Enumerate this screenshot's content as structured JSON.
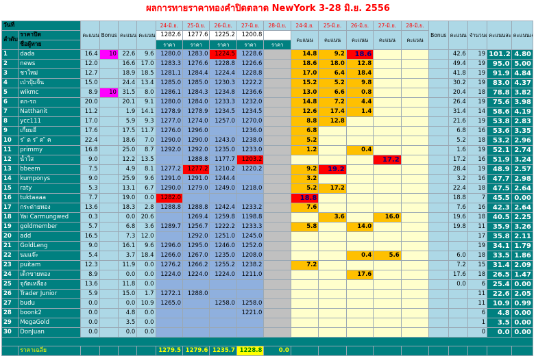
{
  "title": "ผลการทายราคาทองคำปิดตลาด NewYork 3-28 มิ.ย. 2556",
  "header": {
    "row1": [
      "วันที่",
      "คะแนน week1",
      "Bonus week 2",
      "คะแนน week2",
      "คะแนน week3",
      "24-มิ.ย.",
      "25-มิ.ย.",
      "26-มิ.ย.",
      "27-มิ.ย.",
      "28-มิ.ย.",
      "24-มิ.ย.",
      "25-มิ.ย.",
      "26-มิ.ย.",
      "27-มิ.ย.",
      "28-มิ.ย.",
      "Bonus week5",
      "คะแนน week5",
      "จำนวนครั้ง",
      "คะแนนสะสม",
      "คะแนนเฉลี่ย"
    ],
    "close_label": "ราคาปิด",
    "close_prices": [
      "1282.6",
      "1277.6",
      "1225.2",
      "1200.8",
      ""
    ],
    "seq_label": "ลำดับ",
    "player_label": "ชื่อผู้ทาย",
    "price_label": "ราคา",
    "score_label": "คะแนน"
  },
  "rows": [
    {
      "n": "1",
      "name": "dada",
      "w1": "16.4",
      "b2": "10",
      "w2": "22.6",
      "w3": "9.6",
      "p": [
        "1280.0",
        "1283.0",
        "1224.5",
        "1228.6",
        ""
      ],
      "s": [
        "14.8",
        "9.2",
        "18.6",
        "",
        ""
      ],
      "bw5": "",
      "w5": "42.6",
      "cnt": "19",
      "acc": "101.2",
      "avg": "4.80"
    },
    {
      "n": "2",
      "name": "news",
      "w1": "12.0",
      "b2": "",
      "w2": "16.6",
      "w3": "17.0",
      "p": [
        "1283.3",
        "1276.6",
        "1228.8",
        "1226.6",
        ""
      ],
      "s": [
        "18.6",
        "18.0",
        "12.8",
        "",
        ""
      ],
      "bw5": "",
      "w5": "49.4",
      "cnt": "19",
      "acc": "95.0",
      "avg": "5.00"
    },
    {
      "n": "3",
      "name": "ชาใหม่",
      "w1": "12.7",
      "b2": "",
      "w2": "18.9",
      "w3": "18.5",
      "p": [
        "1281.1",
        "1284.4",
        "1224.4",
        "1228.8",
        ""
      ],
      "s": [
        "17.0",
        "6.4",
        "18.4",
        "",
        ""
      ],
      "bw5": "",
      "w5": "41.8",
      "cnt": "19",
      "acc": "91.9",
      "avg": "4.84"
    },
    {
      "n": "4",
      "name": "เป่าปุ้มจิ้น",
      "w1": "15.0",
      "b2": "",
      "w2": "24.4",
      "w3": "13.4",
      "p": [
        "1285.0",
        "1285.0",
        "1230.3",
        "1222.2",
        ""
      ],
      "s": [
        "15.2",
        "5.2",
        "9.8",
        "",
        ""
      ],
      "bw5": "",
      "w5": "30.2",
      "cnt": "19",
      "acc": "83.0",
      "avg": "4.37"
    },
    {
      "n": "5",
      "name": "wikmc",
      "w1": "8.9",
      "b2": "10",
      "w2": "31.5",
      "w3": "8.0",
      "p": [
        "1286.1",
        "1284.3",
        "1234.8",
        "1236.6",
        ""
      ],
      "s": [
        "13.0",
        "6.6",
        "0.8",
        "",
        ""
      ],
      "bw5": "",
      "w5": "20.4",
      "cnt": "18",
      "acc": "78.8",
      "avg": "3.82"
    },
    {
      "n": "6",
      "name": "ตก-รถ",
      "w1": "20.0",
      "b2": "",
      "w2": "20.1",
      "w3": "9.1",
      "p": [
        "1280.0",
        "1284.0",
        "1233.3",
        "1232.0",
        ""
      ],
      "s": [
        "14.8",
        "7.2",
        "4.4",
        "",
        ""
      ],
      "bw5": "",
      "w5": "26.4",
      "cnt": "19",
      "acc": "75.6",
      "avg": "3.98"
    },
    {
      "n": "7",
      "name": "Natthanit",
      "w1": "11.2",
      "b2": "",
      "w2": "1.9",
      "w3": "14.1",
      "p": [
        "1278.9",
        "1278.9",
        "1234.5",
        "1234.5",
        ""
      ],
      "s": [
        "12.6",
        "17.4",
        "1.4",
        "",
        ""
      ],
      "bw5": "",
      "w5": "31.4",
      "cnt": "14",
      "acc": "58.6",
      "avg": "4.19"
    },
    {
      "n": "8",
      "name": "ycc111",
      "w1": "17.0",
      "b2": "",
      "w2": "5.9",
      "w3": "9.3",
      "p": [
        "1277.0",
        "1274.0",
        "1257.0",
        "1270.0",
        ""
      ],
      "s": [
        "8.8",
        "12.8",
        "",
        "",
        ""
      ],
      "bw5": "",
      "w5": "21.6",
      "cnt": "19",
      "acc": "53.8",
      "avg": "2.83"
    },
    {
      "n": "9",
      "name": "เกี้ยมอี๋",
      "w1": "17.6",
      "b2": "",
      "w2": "17.5",
      "w3": "11.7",
      "p": [
        "1276.0",
        "1296.0",
        "",
        "1236.0",
        ""
      ],
      "s": [
        "6.8",
        "",
        "",
        "",
        ""
      ],
      "bw5": "",
      "w5": "6.8",
      "cnt": "16",
      "acc": "53.6",
      "avg": "3.35"
    },
    {
      "n": "10",
      "name": "ร ั ต ร ั ต ั ค",
      "w1": "22.4",
      "b2": "",
      "w2": "18.6",
      "w3": "7.0",
      "p": [
        "1290.0",
        "1290.0",
        "1243.0",
        "1238.0",
        ""
      ],
      "s": [
        "5.2",
        "",
        "",
        "",
        ""
      ],
      "bw5": "",
      "w5": "5.2",
      "cnt": "18",
      "acc": "53.2",
      "avg": "2.96"
    },
    {
      "n": "11",
      "name": "primmy",
      "w1": "16.8",
      "b2": "",
      "w2": "25.0",
      "w3": "8.7",
      "p": [
        "1292.0",
        "1292.0",
        "1235.0",
        "1233.0",
        ""
      ],
      "s": [
        "1.2",
        "",
        "0.4",
        "",
        ""
      ],
      "bw5": "",
      "w5": "1.6",
      "cnt": "19",
      "acc": "52.1",
      "avg": "2.74"
    },
    {
      "n": "12",
      "name": "น้ำใส",
      "w1": "9.0",
      "b2": "",
      "w2": "12.2",
      "w3": "13.5",
      "p": [
        "",
        "1288.8",
        "1177.7",
        "1203.2",
        ""
      ],
      "s": [
        "",
        "",
        "",
        "17.2",
        ""
      ],
      "bw5": "",
      "w5": "17.2",
      "cnt": "16",
      "acc": "51.9",
      "avg": "3.24"
    },
    {
      "n": "13",
      "name": "bbeem",
      "w1": "7.5",
      "b2": "",
      "w2": "4.9",
      "w3": "8.1",
      "p": [
        "1277.2",
        "1277.2",
        "1210.2",
        "1220.2",
        ""
      ],
      "s": [
        "9.2",
        "19.2",
        "",
        "",
        ""
      ],
      "bw5": "",
      "w5": "28.4",
      "cnt": "19",
      "acc": "48.9",
      "avg": "2.57"
    },
    {
      "n": "14",
      "name": "kumponys",
      "w1": "9.0",
      "b2": "",
      "w2": "25.9",
      "w3": "9.6",
      "p": [
        "1291.0",
        "1291.0",
        "1244.4",
        "",
        ""
      ],
      "s": [
        "3.2",
        "",
        "",
        "",
        ""
      ],
      "bw5": "",
      "w5": "3.2",
      "cnt": "16",
      "acc": "47.7",
      "avg": "2.98"
    },
    {
      "n": "15",
      "name": "raty",
      "w1": "5.3",
      "b2": "",
      "w2": "13.1",
      "w3": "6.7",
      "p": [
        "1290.0",
        "1279.0",
        "1249.0",
        "1218.0",
        ""
      ],
      "s": [
        "5.2",
        "17.2",
        "",
        "",
        ""
      ],
      "bw5": "",
      "w5": "22.4",
      "cnt": "18",
      "acc": "47.5",
      "avg": "2.64"
    },
    {
      "n": "16",
      "name": "tuktaaaa",
      "w1": "7.7",
      "b2": "",
      "w2": "19.0",
      "w3": "0.0",
      "p": [
        "1282.0",
        "",
        "",
        "",
        ""
      ],
      "s": [
        "18.8",
        "",
        "",
        "",
        ""
      ],
      "bw5": "",
      "w5": "18.8",
      "cnt": "7",
      "acc": "45.5",
      "avg": "0.00"
    },
    {
      "n": "17",
      "name": "กระต่ายทอง",
      "w1": "13.6",
      "b2": "",
      "w2": "18.3",
      "w3": "2.8",
      "p": [
        "1288.8",
        "1288.8",
        "1242.4",
        "1233.2",
        ""
      ],
      "s": [
        "7.6",
        "",
        "",
        "",
        ""
      ],
      "bw5": "",
      "w5": "7.6",
      "cnt": "16",
      "acc": "42.3",
      "avg": "2.64"
    },
    {
      "n": "18",
      "name": "Yai Carmungwed",
      "w1": "0.3",
      "b2": "",
      "w2": "0.0",
      "w3": "20.6",
      "p": [
        "",
        "1269.4",
        "1259.8",
        "1198.8",
        ""
      ],
      "s": [
        "",
        "3.6",
        "",
        "16.0",
        ""
      ],
      "bw5": "",
      "w5": "19.6",
      "cnt": "18",
      "acc": "40.5",
      "avg": "2.25"
    },
    {
      "n": "19",
      "name": "goldmember",
      "w1": "5.7",
      "b2": "",
      "w2": "6.8",
      "w3": "3.6",
      "p": [
        "1289.7",
        "1256.7",
        "1222.2",
        "1233.3",
        ""
      ],
      "s": [
        "5.8",
        "",
        "14.0",
        "",
        ""
      ],
      "bw5": "",
      "w5": "19.8",
      "cnt": "11",
      "acc": "35.9",
      "avg": "3.26"
    },
    {
      "n": "20",
      "name": "add",
      "w1": "16.5",
      "b2": "",
      "w2": "7.3",
      "w3": "12.0",
      "p": [
        "",
        "1292.0",
        "1251.0",
        "1245.0",
        ""
      ],
      "s": [
        "",
        "",
        "",
        "",
        ""
      ],
      "bw5": "",
      "w5": "",
      "cnt": "17",
      "acc": "35.8",
      "avg": "2.11"
    },
    {
      "n": "21",
      "name": "GoldLeng",
      "w1": "9.0",
      "b2": "",
      "w2": "16.1",
      "w3": "9.6",
      "p": [
        "1296.0",
        "1295.0",
        "1246.0",
        "1252.0",
        ""
      ],
      "s": [
        "",
        "",
        "",
        "",
        ""
      ],
      "bw5": "",
      "w5": "",
      "cnt": "19",
      "acc": "34.1",
      "avg": "1.79"
    },
    {
      "n": "22",
      "name": "นมแจ๊ะ",
      "w1": "5.4",
      "b2": "",
      "w2": "3.7",
      "w3": "18.4",
      "p": [
        "1266.0",
        "1267.0",
        "1235.0",
        "1208.0",
        ""
      ],
      "s": [
        "",
        "",
        "0.4",
        "5.6",
        ""
      ],
      "bw5": "",
      "w5": "6.0",
      "cnt": "18",
      "acc": "33.5",
      "avg": "1.86"
    },
    {
      "n": "23",
      "name": "puitam",
      "w1": "12.3",
      "b2": "",
      "w2": "11.9",
      "w3": "0.0",
      "p": [
        "1276.2",
        "1266.2",
        "1255.2",
        "1238.2",
        ""
      ],
      "s": [
        "7.2",
        "",
        "",
        "",
        ""
      ],
      "bw5": "",
      "w5": "7.2",
      "cnt": "15",
      "acc": "31.4",
      "avg": "2.09"
    },
    {
      "n": "24",
      "name": "เด็กขายทอง",
      "w1": "8.9",
      "b2": "",
      "w2": "0.0",
      "w3": "0.0",
      "p": [
        "1224.0",
        "1224.0",
        "1224.0",
        "1211.0",
        ""
      ],
      "s": [
        "",
        "",
        "17.6",
        "",
        ""
      ],
      "bw5": "",
      "w5": "17.6",
      "cnt": "18",
      "acc": "26.5",
      "avg": "1.47"
    },
    {
      "n": "25",
      "name": "จุกัดเหลือง",
      "w1": "13.6",
      "b2": "",
      "w2": "11.8",
      "w3": "0.0",
      "p": [
        "",
        "",
        "",
        "",
        ""
      ],
      "s": [
        "",
        "",
        "",
        "",
        ""
      ],
      "bw5": "",
      "w5": "0.0",
      "cnt": "6",
      "acc": "25.4",
      "avg": "0.00"
    },
    {
      "n": "26",
      "name": "Trader Junior",
      "w1": "5.9",
      "b2": "",
      "w2": "15.0",
      "w3": "1.7",
      "p": [
        "1272.1",
        "1288.0",
        "",
        "",
        ""
      ],
      "s": [
        "",
        "",
        "",
        "",
        ""
      ],
      "bw5": "",
      "w5": "",
      "cnt": "11",
      "acc": "22.6",
      "avg": "2.05"
    },
    {
      "n": "27",
      "name": "budu",
      "w1": "0.0",
      "b2": "",
      "w2": "0.0",
      "w3": "10.9",
      "p": [
        "1265.0",
        "",
        "1258.0",
        "1258.0",
        ""
      ],
      "s": [
        "",
        "",
        "",
        "",
        ""
      ],
      "bw5": "",
      "w5": "",
      "cnt": "11",
      "acc": "10.9",
      "avg": "0.99"
    },
    {
      "n": "28",
      "name": "boonk2",
      "w1": "0.0",
      "b2": "",
      "w2": "4.8",
      "w3": "0.0",
      "p": [
        "",
        "",
        "",
        "1221.0",
        ""
      ],
      "s": [
        "",
        "",
        "",
        "",
        ""
      ],
      "bw5": "",
      "w5": "",
      "cnt": "6",
      "acc": "4.8",
      "avg": "0.00"
    },
    {
      "n": "29",
      "name": "MegaGold",
      "w1": "0.0",
      "b2": "",
      "w2": "3.5",
      "w3": "0.0",
      "p": [
        "",
        "",
        "",
        "",
        ""
      ],
      "s": [
        "",
        "",
        "",
        "",
        ""
      ],
      "bw5": "",
      "w5": "",
      "cnt": "1",
      "acc": "3.5",
      "avg": "0.00"
    },
    {
      "n": "30",
      "name": "DonJuan",
      "w1": "0.0",
      "b2": "",
      "w2": "0.0",
      "w3": "0.0",
      "p": [
        "",
        "",
        "",
        "",
        ""
      ],
      "s": [
        "",
        "",
        "",
        "",
        ""
      ],
      "bw5": "",
      "w5": "",
      "cnt": "0",
      "acc": "0.0",
      "avg": "0.00"
    }
  ],
  "footer": {
    "label": "ราคาเฉลี่ย",
    "avgs": [
      "1279.5",
      "1279.6",
      "1235.7",
      "1228.8",
      "0.0"
    ]
  },
  "colors": {
    "teal": "#008080",
    "score_orange": "#ffc000",
    "red_highlight": "#ff0000",
    "bonus_magenta": "#ff00ff",
    "title_red": "#ff0000"
  }
}
